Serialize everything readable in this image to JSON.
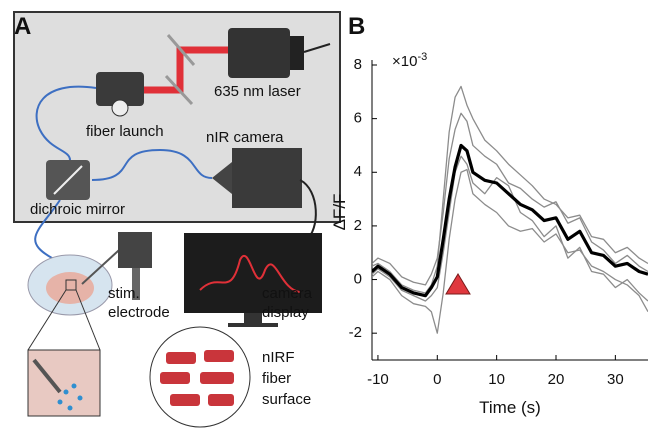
{
  "panel_labels": {
    "a": "A",
    "b": "B"
  },
  "diagram": {
    "laser": "635 nm laser",
    "fiber_launch": "fiber launch",
    "camera": "nIR camera",
    "mirror": "dichroic mirror",
    "electrode": [
      "stim.",
      "electrode"
    ],
    "display": [
      "camera",
      "display"
    ],
    "surface": [
      "nIRF",
      "fiber",
      "surface"
    ]
  },
  "chart_data": {
    "type": "line",
    "xlabel": "Time (s)",
    "ylabel": "ΔF/F",
    "y_scale": {
      "base": "×10",
      "exponent": "-3"
    },
    "x": [
      -11,
      -10,
      -8,
      -6,
      -4,
      -2,
      -1,
      0,
      1,
      2,
      3,
      4,
      5,
      6,
      8,
      10,
      12,
      14,
      16,
      18,
      20,
      22,
      24,
      26,
      28,
      30,
      32,
      34,
      35.5
    ],
    "series": [
      {
        "color": "#8c8c8c",
        "values": [
          0.5,
          0.6,
          0.3,
          -0.2,
          -0.4,
          -0.5,
          -0.2,
          0.5,
          3,
          5.5,
          6.8,
          7.2,
          6.5,
          6,
          5.2,
          4.8,
          4.3,
          3.9,
          3.5,
          3,
          2.8,
          2.3,
          2.4,
          1.6,
          1.5,
          1.0,
          1.2,
          0.8,
          0.6
        ]
      },
      {
        "color": "#8c8c8c",
        "values": [
          0.2,
          0.4,
          0.1,
          -0.4,
          -0.6,
          -0.8,
          -0.6,
          -0.3,
          1,
          2.5,
          4,
          4.6,
          4.3,
          3.6,
          3.2,
          3.8,
          3.5,
          2.5,
          2.2,
          1.6,
          2,
          0.8,
          1.2,
          0.3,
          0.2,
          -0.3,
          0,
          -0.5,
          -0.8
        ]
      },
      {
        "color": "#8c8c8c",
        "values": [
          0.1,
          0.3,
          0,
          -0.6,
          -0.9,
          -1,
          -1.2,
          -2,
          -0.5,
          1.5,
          3,
          4,
          4.1,
          3.2,
          2.8,
          2.5,
          2,
          1.8,
          1.9,
          1.4,
          1.7,
          1,
          1.1,
          0.5,
          0.3,
          0,
          -0.2,
          -0.6,
          -1.2
        ]
      },
      {
        "color": "#8c8c8c",
        "values": [
          0.6,
          0.8,
          0.6,
          0.1,
          -0.1,
          -0.2,
          0.2,
          0.8,
          2.5,
          4.5,
          5.6,
          6.2,
          5.9,
          5,
          4.6,
          4.3,
          3.6,
          3.4,
          3,
          2.7,
          2.9,
          2.1,
          2.3,
          1.4,
          1.1,
          0.6,
          0.9,
          0.5,
          0.3
        ]
      },
      {
        "color": "#000000",
        "values": [
          0.3,
          0.5,
          0.2,
          -0.3,
          -0.5,
          -0.6,
          -0.3,
          0.1,
          1.5,
          3,
          4.2,
          5,
          4.8,
          4,
          3.7,
          3.6,
          3.2,
          2.8,
          2.6,
          2.2,
          2.3,
          1.5,
          1.8,
          1.0,
          0.9,
          0.5,
          0.6,
          0.3,
          0.2
        ]
      }
    ],
    "xlim": [
      -11,
      35.5
    ],
    "ylim": [
      -3,
      8
    ],
    "xticks": [
      -10,
      0,
      10,
      20,
      30
    ],
    "yticks": [
      -2,
      0,
      2,
      4,
      6,
      8
    ]
  }
}
